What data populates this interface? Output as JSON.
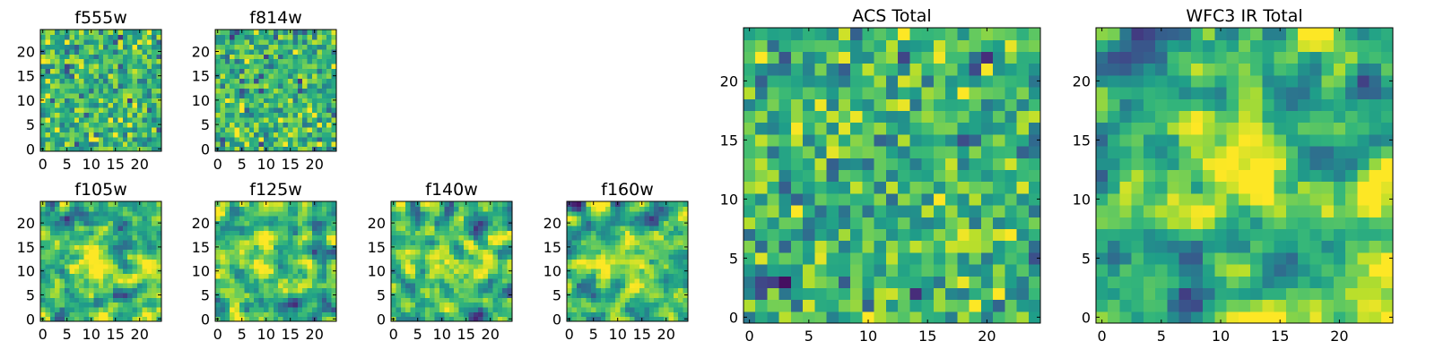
{
  "chart_data": [
    {
      "type": "heatmap",
      "title": "f555w",
      "xticks": [
        0,
        5,
        10,
        15,
        20
      ],
      "yticks": [
        0,
        5,
        10,
        15,
        20
      ],
      "xlim": [
        -0.5,
        24.5
      ],
      "ylim": [
        -0.5,
        24.5
      ],
      "grid": [
        25,
        25
      ],
      "colormap": "viridis",
      "seed": 11,
      "smooth": 0,
      "spots": []
    },
    {
      "type": "heatmap",
      "title": "f814w",
      "xticks": [
        0,
        5,
        10,
        15,
        20
      ],
      "yticks": [
        0,
        5,
        10,
        15,
        20
      ],
      "xlim": [
        -0.5,
        24.5
      ],
      "ylim": [
        -0.5,
        24.5
      ],
      "grid": [
        25,
        25
      ],
      "colormap": "viridis",
      "seed": 23,
      "smooth": 0,
      "spots": []
    },
    {
      "type": "heatmap",
      "title": "f105w",
      "xticks": [
        0,
        5,
        10,
        15,
        20
      ],
      "yticks": [
        0,
        5,
        10,
        15,
        20
      ],
      "xlim": [
        -0.5,
        24.5
      ],
      "ylim": [
        -0.5,
        24.5
      ],
      "grid": [
        25,
        25
      ],
      "colormap": "viridis",
      "seed": 37,
      "smooth": 1,
      "spots": [
        [
          10,
          10,
          4,
          0.35
        ]
      ]
    },
    {
      "type": "heatmap",
      "title": "f125w",
      "xticks": [
        0,
        5,
        10,
        15,
        20
      ],
      "yticks": [
        0,
        5,
        10,
        15,
        20
      ],
      "xlim": [
        -0.5,
        24.5
      ],
      "ylim": [
        -0.5,
        24.5
      ],
      "grid": [
        25,
        25
      ],
      "colormap": "viridis",
      "seed": 41,
      "smooth": 1,
      "spots": [
        [
          12,
          12,
          4,
          0.3
        ]
      ]
    },
    {
      "type": "heatmap",
      "title": "f140w",
      "xticks": [
        0,
        5,
        10,
        15,
        20
      ],
      "yticks": [
        0,
        5,
        10,
        15,
        20
      ],
      "xlim": [
        -0.5,
        24.5
      ],
      "ylim": [
        -0.5,
        24.5
      ],
      "grid": [
        25,
        25
      ],
      "colormap": "viridis",
      "seed": 53,
      "smooth": 1,
      "spots": [
        [
          12,
          11,
          4,
          0.3
        ]
      ]
    },
    {
      "type": "heatmap",
      "title": "f160w",
      "xticks": [
        0,
        5,
        10,
        15,
        20
      ],
      "yticks": [
        0,
        5,
        10,
        15,
        20
      ],
      "xlim": [
        -0.5,
        24.5
      ],
      "ylim": [
        -0.5,
        24.5
      ],
      "grid": [
        25,
        25
      ],
      "colormap": "viridis",
      "seed": 67,
      "smooth": 1,
      "spots": [
        [
          12,
          12,
          4,
          0.3
        ]
      ]
    },
    {
      "type": "heatmap",
      "title": "ACS Total",
      "xticks": [
        0,
        5,
        10,
        15,
        20
      ],
      "yticks": [
        0,
        5,
        10,
        15,
        20
      ],
      "xlim": [
        -0.5,
        24.5
      ],
      "ylim": [
        -0.5,
        24.5
      ],
      "grid": [
        25,
        25
      ],
      "colormap": "viridis",
      "seed": 79,
      "smooth": 0,
      "spots": [
        [
          18.5,
          15,
          0.8,
          -1.2
        ],
        [
          1.5,
          20,
          0.7,
          -0.9
        ],
        [
          19.5,
          22,
          0.7,
          -0.9
        ],
        [
          3,
          3,
          0.7,
          -0.9
        ]
      ]
    },
    {
      "type": "heatmap",
      "title": "WFC3 IR Total",
      "xticks": [
        0,
        5,
        10,
        15,
        20
      ],
      "yticks": [
        0,
        5,
        10,
        15,
        20
      ],
      "xlim": [
        -0.5,
        24.5
      ],
      "ylim": [
        -0.5,
        24.5
      ],
      "grid": [
        25,
        25
      ],
      "colormap": "viridis",
      "seed": 97,
      "smooth": 1,
      "spots": [
        [
          12,
          12.5,
          3.5,
          0.55
        ],
        [
          7.5,
          1.5,
          1.2,
          -1.0
        ],
        [
          8,
          4.5,
          1.0,
          -0.7
        ],
        [
          1,
          5,
          0.8,
          -0.7
        ],
        [
          23,
          19,
          1.0,
          -0.6
        ]
      ]
    }
  ]
}
